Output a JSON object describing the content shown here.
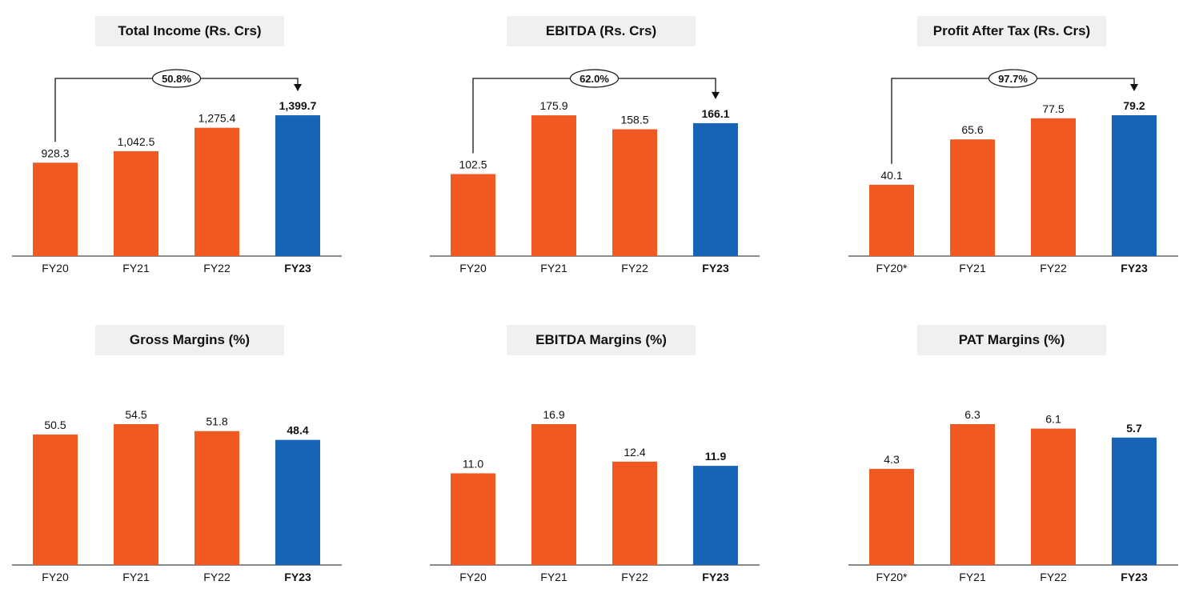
{
  "colors": {
    "orange": "#f05a22",
    "blue": "#1763b5",
    "axis": "#444444",
    "title_bg": "#f0f0f0"
  },
  "chart_data": [
    {
      "type": "bar",
      "title": "Total Income (Rs. Crs)",
      "categories": [
        "FY20",
        "FY21",
        "FY22",
        "FY23"
      ],
      "values": [
        928.3,
        1042.5,
        1275.4,
        1399.7
      ],
      "labels": [
        "928.3",
        "1,042.5",
        "1,275.4",
        "1,399.7"
      ],
      "highlight_index": 3,
      "growth_label": "50.8%",
      "ylim": [
        0,
        1400
      ]
    },
    {
      "type": "bar",
      "title": "EBITDA (Rs. Crs)",
      "categories": [
        "FY20",
        "FY21",
        "FY22",
        "FY23"
      ],
      "values": [
        102.5,
        175.9,
        158.5,
        166.1
      ],
      "labels": [
        "102.5",
        "175.9",
        "158.5",
        "166.1"
      ],
      "highlight_index": 3,
      "growth_label": "62.0%",
      "ylim": [
        0,
        176
      ]
    },
    {
      "type": "bar",
      "title": "Profit After Tax (Rs. Crs)",
      "categories": [
        "FY20*",
        "FY21",
        "FY22",
        "FY23"
      ],
      "values": [
        40.1,
        65.6,
        77.5,
        79.2
      ],
      "labels": [
        "40.1",
        "65.6",
        "77.5",
        "79.2"
      ],
      "highlight_index": 3,
      "growth_label": "97.7%",
      "ylim": [
        0,
        79.2
      ]
    },
    {
      "type": "bar",
      "title": "Gross Margins (%)",
      "categories": [
        "FY20",
        "FY21",
        "FY22",
        "FY23"
      ],
      "values": [
        50.5,
        54.5,
        51.8,
        48.4
      ],
      "labels": [
        "50.5",
        "54.5",
        "51.8",
        "48.4"
      ],
      "highlight_index": 3,
      "growth_label": "",
      "ylim": [
        0,
        54.5
      ]
    },
    {
      "type": "bar",
      "title": "EBITDA Margins (%)",
      "categories": [
        "FY20",
        "FY21",
        "FY22",
        "FY23"
      ],
      "values": [
        11.0,
        16.9,
        12.4,
        11.9
      ],
      "labels": [
        "11.0",
        "16.9",
        "12.4",
        "11.9"
      ],
      "highlight_index": 3,
      "growth_label": "",
      "ylim": [
        0,
        16.9
      ]
    },
    {
      "type": "bar",
      "title": "PAT Margins (%)",
      "categories": [
        "FY20*",
        "FY21",
        "FY22",
        "FY23"
      ],
      "values": [
        4.3,
        6.3,
        6.1,
        5.7
      ],
      "labels": [
        "4.3",
        "6.3",
        "6.1",
        "5.7"
      ],
      "highlight_index": 3,
      "growth_label": "",
      "ylim": [
        0,
        6.3
      ]
    }
  ]
}
